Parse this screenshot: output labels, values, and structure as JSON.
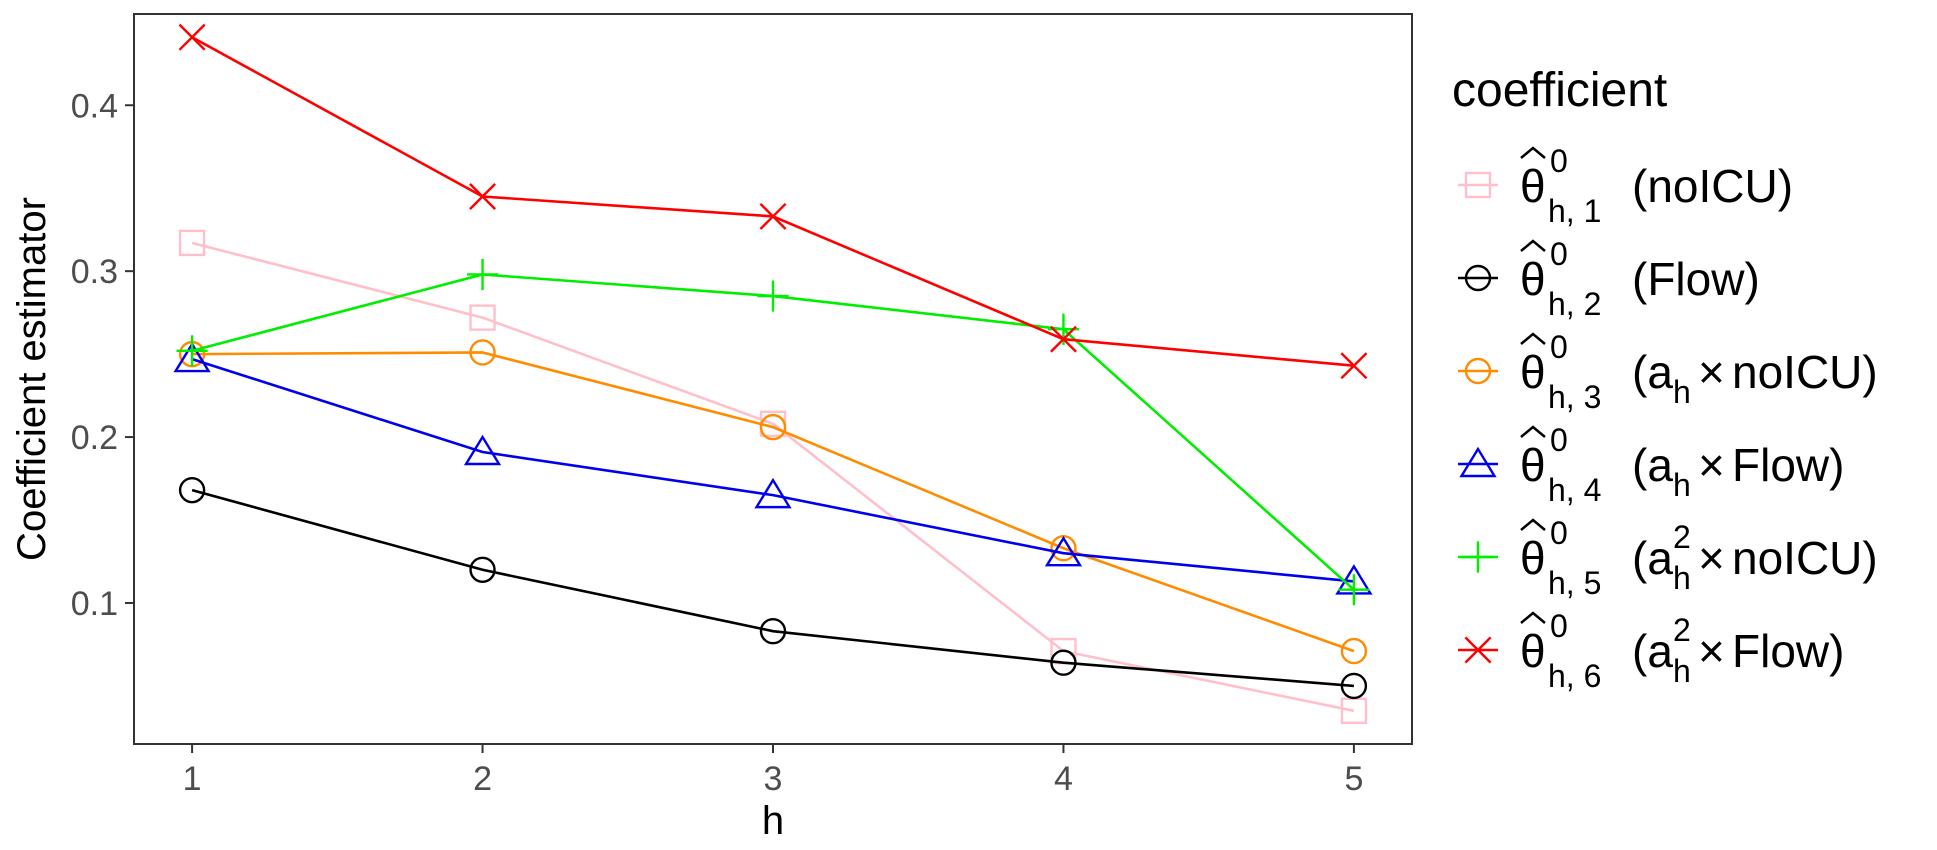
{
  "chart_data": {
    "type": "line",
    "x": [
      1,
      2,
      3,
      4,
      5
    ],
    "xlabel": "h",
    "ylabel": "Coefficient estimator",
    "xticks": [
      "1",
      "2",
      "3",
      "4",
      "5"
    ],
    "yticks": [
      "0.1",
      "0.2",
      "0.3",
      "0.4"
    ],
    "xlim": [
      0.8,
      5.2
    ],
    "ylim": [
      0.015,
      0.455
    ],
    "grid": false,
    "legend": {
      "position": "right",
      "title": "coefficient"
    },
    "series": [
      {
        "name": "θ̂⁰h,1 (noICU)",
        "label_parts": [
          "h, 1",
          "",
          "(noICU)"
        ],
        "color": "#FFC0CB",
        "marker": "square",
        "values": [
          0.317,
          0.272,
          0.208,
          0.071,
          0.035
        ]
      },
      {
        "name": "θ̂⁰h,2 (Flow)",
        "label_parts": [
          "h, 2",
          "",
          "(Flow)"
        ],
        "color": "#000000",
        "marker": "circle",
        "values": [
          0.168,
          0.12,
          0.083,
          0.064,
          0.05
        ]
      },
      {
        "name": "θ̂⁰h,3 (ah×noICU)",
        "label_parts": [
          "h, 3",
          "",
          "noICU)"
        ],
        "color": "#FF8C00",
        "marker": "circle",
        "values": [
          0.25,
          0.251,
          0.206,
          0.133,
          0.071
        ]
      },
      {
        "name": "θ̂⁰h,4 (ah×Flow)",
        "label_parts": [
          "h, 4",
          "",
          "Flow)"
        ],
        "color": "#0000EE",
        "marker": "triangle",
        "values": [
          0.247,
          0.191,
          0.165,
          0.13,
          0.113
        ]
      },
      {
        "name": "θ̂⁰h,5 (ah²×noICU)",
        "label_parts": [
          "h, 5",
          "2",
          "noICU)"
        ],
        "color": "#00EE00",
        "marker": "plus",
        "values": [
          0.252,
          0.298,
          0.285,
          0.265,
          0.108
        ]
      },
      {
        "name": "θ̂⁰h,6 (ah²×Flow)",
        "label_parts": [
          "h, 6",
          "2",
          "Flow)"
        ],
        "color": "#FF0000",
        "marker": "cross",
        "values": [
          0.441,
          0.345,
          0.333,
          0.259,
          0.243
        ]
      }
    ]
  }
}
